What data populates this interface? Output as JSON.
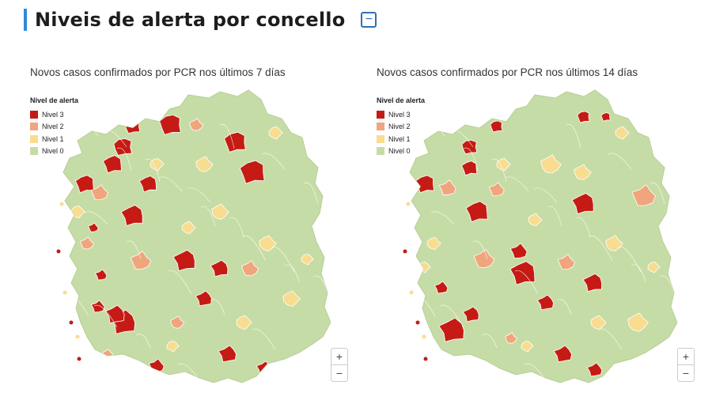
{
  "header": {
    "title": "Niveis de alerta por concello",
    "collapse_label": "−"
  },
  "colors": {
    "nivel3": "#c51b14",
    "nivel2": "#f0a57d",
    "nivel1": "#f8dc90",
    "nivel0": "#c6dca6",
    "border": "#ffffff"
  },
  "legend": {
    "title": "Nivel de alerta",
    "items": [
      {
        "label": "Nivel 3",
        "color": "#c51b14"
      },
      {
        "label": "Nivel 2",
        "color": "#f0a57d"
      },
      {
        "label": "Nivel 1",
        "color": "#f8dc90"
      },
      {
        "label": "Nivel 0",
        "color": "#c6dca6"
      }
    ]
  },
  "maps": [
    {
      "title": "Novos casos confirmados por PCR nos últimos 7 días"
    },
    {
      "title": "Novos casos confirmados por PCR nos últimos 14 días"
    }
  ],
  "zoom": {
    "in_label": "+",
    "out_label": "−"
  }
}
